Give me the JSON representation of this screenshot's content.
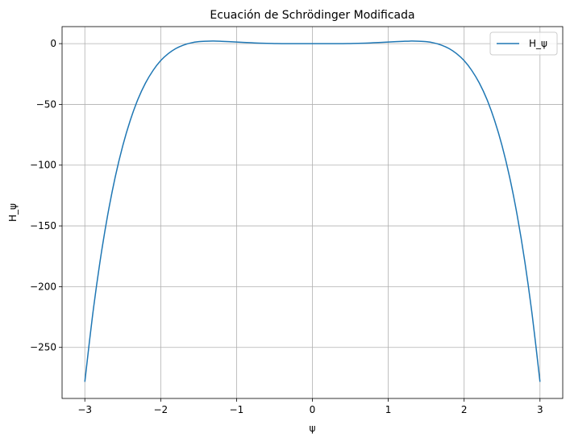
{
  "chart_data": {
    "type": "line",
    "title": "Ecuación de Schrödinger Modificada",
    "xlabel": "ψ",
    "ylabel": "H_ψ",
    "xlim": [
      -3.3,
      3.3
    ],
    "ylim": [
      -292,
      14
    ],
    "xticks": [
      -3,
      -2,
      -1,
      0,
      1,
      2,
      3
    ],
    "xtick_labels": [
      "−3",
      "−2",
      "−1",
      "0",
      "1",
      "2",
      "3"
    ],
    "yticks": [
      0,
      -50,
      -100,
      -150,
      -200,
      -250
    ],
    "ytick_labels": [
      "0",
      "−50",
      "−100",
      "−150",
      "−200",
      "−250"
    ],
    "grid": true,
    "legend": {
      "position": "top-right",
      "entries": [
        "H_ψ"
      ]
    },
    "series": [
      {
        "name": "H_ψ",
        "color": "#1f77b4",
        "x": [
          -3.0,
          -2.9,
          -2.8,
          -2.7,
          -2.6,
          -2.5,
          -2.4,
          -2.3,
          -2.2,
          -2.1,
          -2.0,
          -1.9,
          -1.8,
          -1.7,
          -1.6,
          -1.5,
          -1.4,
          -1.3,
          -1.2,
          -1.1,
          -1.0,
          -0.9,
          -0.8,
          -0.7,
          -0.6,
          -0.5,
          -0.4,
          -0.3,
          -0.2,
          -0.1,
          0.0,
          0.1,
          0.2,
          0.3,
          0.4,
          0.5,
          0.6,
          0.7,
          0.8,
          0.9,
          1.0,
          1.1,
          1.2,
          1.3,
          1.4,
          1.5,
          1.6,
          1.7,
          1.8,
          1.9,
          2.0,
          2.1,
          2.2,
          2.3,
          2.4,
          2.5,
          2.6,
          2.7,
          2.8,
          2.9,
          3.0
        ],
        "y": [
          -278.3,
          -224.7,
          -179.4,
          -141.5,
          -109.9,
          -84.0,
          -62.9,
          -45.8,
          -32.4,
          -22.0,
          -14.0,
          -8.2,
          -4.0,
          -1.2,
          0.6,
          1.6,
          2.0,
          2.1,
          1.9,
          1.6,
          1.3,
          1.0,
          0.7,
          0.4,
          0.2,
          0.1,
          0.0,
          0.0,
          0.0,
          0.0,
          0.0,
          0.0,
          0.0,
          0.0,
          0.0,
          0.1,
          0.2,
          0.4,
          0.7,
          1.0,
          1.3,
          1.6,
          1.9,
          2.1,
          2.0,
          1.6,
          0.6,
          -1.2,
          -4.0,
          -8.2,
          -14.0,
          -22.0,
          -32.4,
          -45.8,
          -62.9,
          -84.0,
          -109.9,
          -141.5,
          -179.4,
          -224.7,
          -278.3
        ]
      }
    ]
  }
}
